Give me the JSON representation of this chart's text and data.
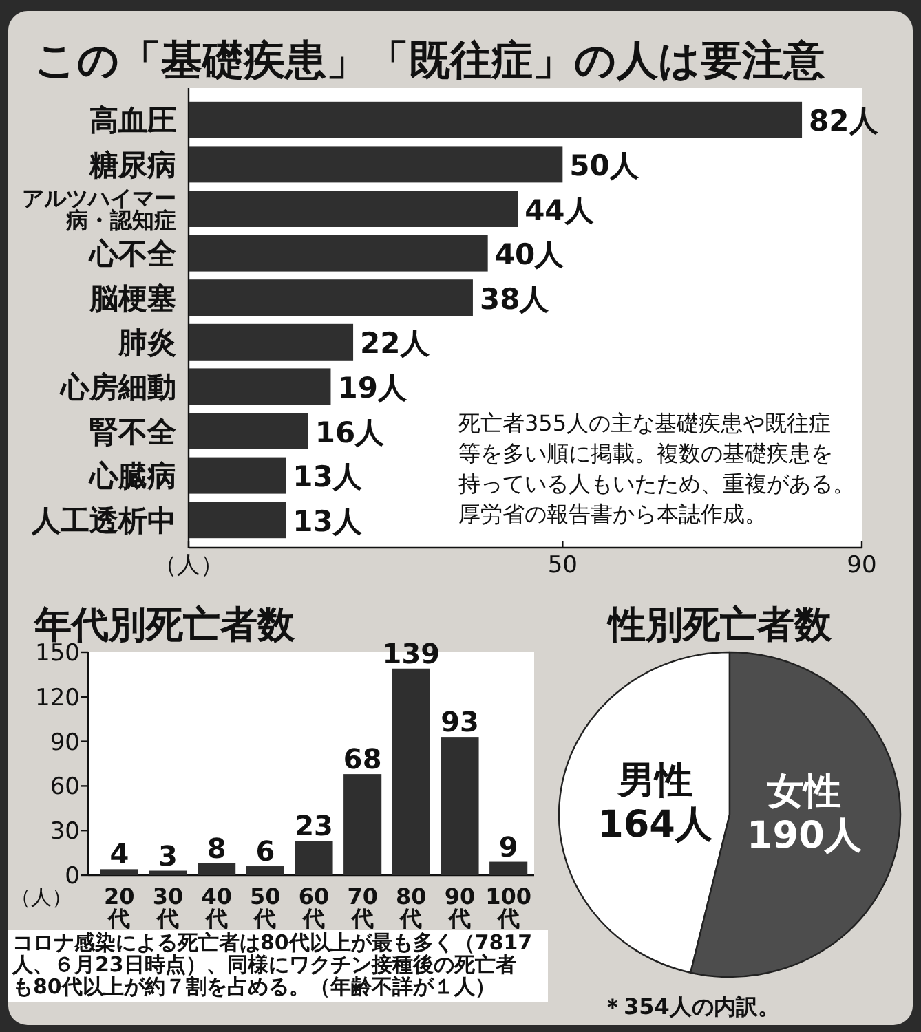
{
  "chart_data": [
    {
      "type": "bar",
      "orientation": "horizontal",
      "title": "この「基礎疾患」「既往症」の人は要注意",
      "categories": [
        "高血圧",
        "糖尿病",
        "アルツハイマー病・認知症",
        "心不全",
        "脳梗塞",
        "肺炎",
        "心房細動",
        "腎不全",
        "心臓病",
        "人工透析中"
      ],
      "values": [
        82,
        50,
        44,
        40,
        38,
        22,
        19,
        16,
        13,
        13
      ],
      "color": "#2f2f2f",
      "value_labels": [
        "82人",
        "50人",
        "44人",
        "40人",
        "38人",
        "22人",
        "19人",
        "16人",
        "13人",
        "13人"
      ],
      "xlim": [
        0,
        90
      ],
      "xticks": [
        {
          "value": 0,
          "label": "（人）"
        },
        50,
        90
      ],
      "annotations": [
        "死亡者355人の主な基礎疾患や既往症等を多い順に掲載。複数の基礎疾患を持っている人もいたため、重複がある。厚労省の報告書から本誌作成。"
      ]
    },
    {
      "type": "bar",
      "title": "年代別死亡者数",
      "ylabel": "（人）",
      "categories": [
        "20代",
        "30代",
        "40代",
        "50代",
        "60代",
        "70代",
        "80代",
        "90代",
        "100代"
      ],
      "values": [
        4,
        3,
        8,
        6,
        23,
        68,
        139,
        93,
        9
      ],
      "color": "#2f2f2f",
      "data_labels": true,
      "ylim": [
        0,
        150
      ],
      "yticks": [
        0,
        30,
        60,
        90,
        120,
        150
      ],
      "annotations": [
        "コロナ感染による死亡者は80代以上が最も多く（7817人、６月23日時点）、同様にワクチン接種後の死亡者も80代以上が約７割を占める。（年齢不詳が１人）"
      ]
    },
    {
      "type": "pie",
      "title": "性別死亡者数",
      "categories": [
        "男性",
        "女性"
      ],
      "values": [
        164,
        190
      ],
      "colors": [
        "#ffffff",
        "#4d4d4d"
      ],
      "value_labels": [
        "164人",
        "190人"
      ],
      "annotations": [
        "＊354人の内訳。"
      ]
    }
  ]
}
